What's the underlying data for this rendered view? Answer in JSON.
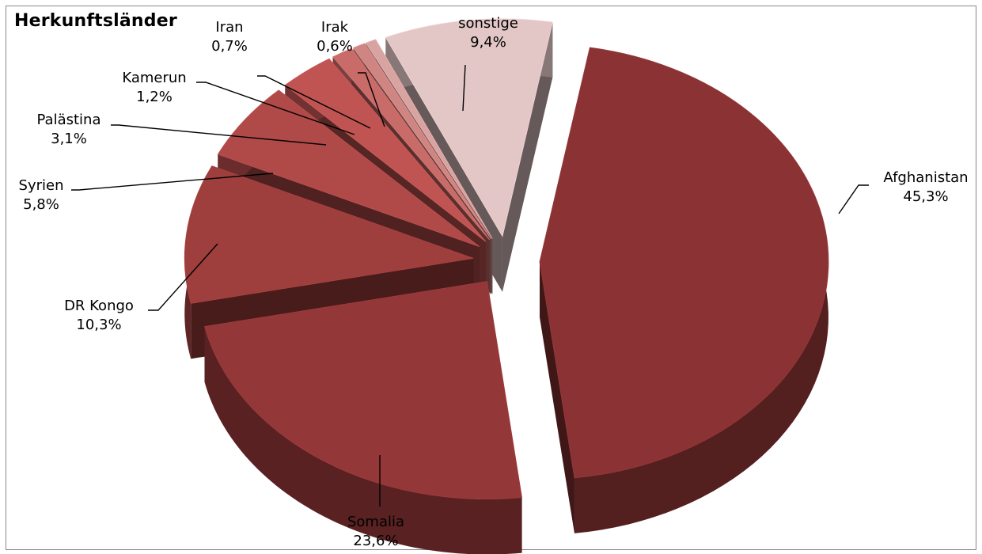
{
  "chart_data": {
    "type": "pie",
    "title": "Herkunftsländer",
    "slices": [
      {
        "label": "Afghanistan",
        "value": 45.3,
        "value_text": "45,3%",
        "color": "#8b3334"
      },
      {
        "label": "Somalia",
        "value": 23.6,
        "value_text": "23,6%",
        "color": "#943738"
      },
      {
        "label": "DR Kongo",
        "value": 10.3,
        "value_text": "10,3%",
        "color": "#9e3e3d"
      },
      {
        "label": "Syrien",
        "value": 5.8,
        "value_text": "5,8%",
        "color": "#b04a49"
      },
      {
        "label": "Palästina",
        "value": 3.1,
        "value_text": "3,1%",
        "color": "#bf5453"
      },
      {
        "label": "Kamerun",
        "value": 1.2,
        "value_text": "1,2%",
        "color": "#c86b69"
      },
      {
        "label": "Iran",
        "value": 0.7,
        "value_text": "0,7%",
        "color": "#cf8683"
      },
      {
        "label": "Irak",
        "value": 0.6,
        "value_text": "0,6%",
        "color": "#d8a4a2"
      },
      {
        "label": "sonstige",
        "value": 9.4,
        "value_text": "9,4%",
        "color": "#e3c6c6"
      }
    ],
    "legend": "none",
    "exploded": true,
    "style": "3d"
  }
}
